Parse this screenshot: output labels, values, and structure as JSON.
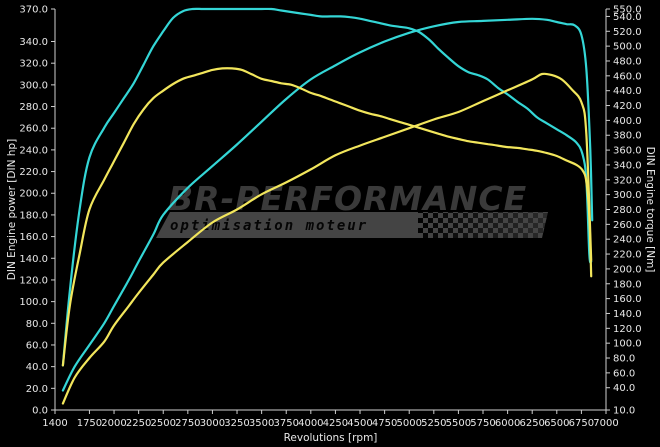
{
  "chart_data": {
    "type": "line",
    "title": "",
    "xlabel": "Revolutions [rpm]",
    "ylabel_left": "DIN Engine power [DIN hp]",
    "ylabel_right": "DIN Engine torque [Nm]",
    "xlim": [
      1400,
      7000
    ],
    "ylim_left": [
      0,
      370
    ],
    "ylim_right": [
      10,
      550
    ],
    "x_ticks": [
      "1400",
      "1750",
      "2000",
      "2250",
      "2500",
      "2750",
      "3000",
      "3250",
      "3500",
      "3750",
      "4000",
      "4250",
      "4500",
      "4750",
      "5000",
      "5250",
      "5500",
      "5750",
      "6000",
      "6250",
      "6500",
      "6750",
      "7000"
    ],
    "x_tick_values": [
      1400,
      1750,
      2000,
      2250,
      2500,
      2750,
      3000,
      3250,
      3500,
      3750,
      4000,
      4250,
      4500,
      4750,
      5000,
      5250,
      5500,
      5750,
      6000,
      6250,
      6500,
      6750,
      7000
    ],
    "y_left_ticks": [
      "370.0",
      "340.0",
      "320.0",
      "300.0",
      "280.0",
      "260.0",
      "240.0",
      "220.0",
      "200.0",
      "180.0",
      "160.0",
      "140.0",
      "120.0",
      "100.0",
      "80.0",
      "60.0",
      "40.0",
      "20.0",
      "0.0"
    ],
    "y_left_tick_values": [
      370,
      340,
      320,
      300,
      280,
      260,
      240,
      220,
      200,
      180,
      160,
      140,
      120,
      100,
      80,
      60,
      40,
      20,
      0
    ],
    "y_right_ticks": [
      "550.0",
      "540.0",
      "520.0",
      "500.0",
      "480.0",
      "460.0",
      "440.0",
      "420.0",
      "400.0",
      "380.0",
      "360.0",
      "340.0",
      "320.0",
      "300.0",
      "280.0",
      "260.0",
      "240.0",
      "220.0",
      "200.0",
      "180.0",
      "160.0",
      "140.0",
      "120.0",
      "100.0",
      "80.0",
      "60.0",
      "40.0",
      "10.0"
    ],
    "y_right_tick_values": [
      550,
      540,
      520,
      500,
      480,
      460,
      440,
      420,
      400,
      380,
      360,
      340,
      320,
      300,
      280,
      260,
      240,
      220,
      200,
      180,
      160,
      140,
      120,
      100,
      80,
      60,
      40,
      10
    ],
    "grid": false,
    "legend": "none",
    "series": [
      {
        "axis": "right",
        "color": "#34d6d6",
        "x": [
          1480,
          1550,
          1650,
          1750,
          1900,
          2000,
          2100,
          2200,
          2300,
          2400,
          2500,
          2600,
          2700,
          2800,
          2900,
          3000,
          3100,
          3200,
          3300,
          3400,
          3500,
          3600,
          3700,
          3800,
          3900,
          4000,
          4100,
          4200,
          4300,
          4400,
          4500,
          4600,
          4700,
          4800,
          4900,
          5000,
          5100,
          5200,
          5300,
          5400,
          5500,
          5600,
          5700,
          5800,
          5900,
          6000,
          6100,
          6200,
          6300,
          6400,
          6500,
          6600,
          6700,
          6760,
          6800,
          6830,
          6850
        ],
        "y": [
          70,
          170,
          280,
          350,
          390,
          410,
          430,
          450,
          475,
          500,
          520,
          538,
          547,
          550,
          550,
          550,
          550,
          550,
          550,
          550,
          550,
          550,
          548,
          546,
          544,
          542,
          540,
          540,
          540,
          539,
          537,
          534,
          531,
          528,
          526,
          524,
          519,
          509,
          496,
          484,
          473,
          465,
          461,
          455,
          444,
          435,
          425,
          416,
          404,
          396,
          388,
          380,
          370,
          355,
          320,
          220,
          210
        ]
      },
      {
        "axis": "left",
        "color": "#34d6d6",
        "x": [
          1480,
          1600,
          1750,
          1900,
          2000,
          2150,
          2250,
          2400,
          2500,
          2750,
          3000,
          3250,
          3500,
          3750,
          4000,
          4250,
          4500,
          4750,
          5000,
          5250,
          5500,
          5750,
          6000,
          6250,
          6400,
          6500,
          6600,
          6680,
          6750,
          6800,
          6840,
          6860
        ],
        "y": [
          18,
          40,
          60,
          80,
          96,
          120,
          137,
          162,
          180,
          205,
          225,
          245,
          266,
          287,
          305,
          318,
          330,
          340,
          348,
          354,
          358,
          359,
          360,
          361,
          360,
          358,
          356,
          355,
          346,
          315,
          240,
          175
        ]
      },
      {
        "axis": "right",
        "color": "#f2e65c",
        "x": [
          1480,
          1550,
          1650,
          1750,
          1900,
          2000,
          2100,
          2200,
          2300,
          2400,
          2500,
          2600,
          2700,
          2800,
          2900,
          3000,
          3100,
          3200,
          3300,
          3400,
          3500,
          3600,
          3700,
          3800,
          3900,
          4000,
          4100,
          4200,
          4300,
          4400,
          4500,
          4600,
          4700,
          4800,
          4900,
          5000,
          5100,
          5200,
          5300,
          5400,
          5500,
          5600,
          5700,
          5800,
          5900,
          6000,
          6100,
          6200,
          6300,
          6400,
          6500,
          6600,
          6700,
          6760,
          6800,
          6830,
          6850
        ],
        "y": [
          70,
          150,
          220,
          280,
          320,
          345,
          370,
          395,
          415,
          430,
          440,
          449,
          456,
          460,
          464,
          468,
          470,
          470,
          468,
          462,
          456,
          453,
          450,
          448,
          443,
          437,
          433,
          428,
          423,
          418,
          413,
          409,
          406,
          402,
          398,
          394,
          390,
          386,
          382,
          378,
          375,
          372,
          370,
          368,
          366,
          364,
          363,
          361,
          359,
          356,
          352,
          346,
          340,
          333,
          318,
          270,
          190
        ]
      },
      {
        "axis": "left",
        "color": "#f2e65c",
        "x": [
          1480,
          1600,
          1750,
          1900,
          2000,
          2150,
          2250,
          2400,
          2500,
          2750,
          3000,
          3250,
          3500,
          3750,
          4000,
          4250,
          4500,
          4750,
          5000,
          5250,
          5500,
          5750,
          6000,
          6250,
          6350,
          6450,
          6550,
          6650,
          6750,
          6800,
          6850
        ],
        "y": [
          6,
          30,
          48,
          63,
          78,
          96,
          108,
          125,
          136,
          155,
          173,
          185,
          199,
          210,
          222,
          235,
          244,
          252,
          260,
          268,
          275,
          285,
          295,
          305,
          310,
          309,
          305,
          296,
          284,
          255,
          138
        ]
      }
    ],
    "watermark": {
      "main": "BR-PERFORMANCE",
      "sub": "optimisation moteur"
    }
  }
}
